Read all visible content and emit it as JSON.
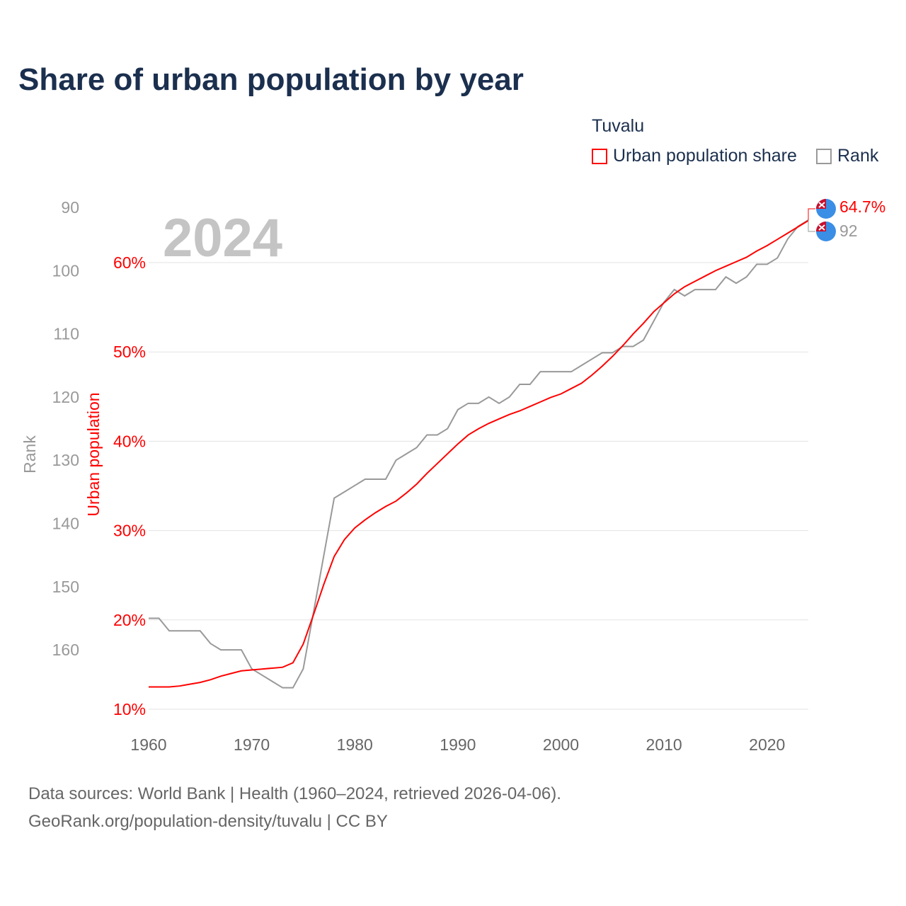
{
  "title": "Share of urban population by year",
  "legend": {
    "country": "Tuvalu",
    "items": [
      {
        "label": "Urban population share",
        "color": "#ff0000"
      },
      {
        "label": "Rank",
        "color": "#999999"
      }
    ]
  },
  "year_label": "2024",
  "footer": {
    "line1": "Data sources: World Bank | Health (1960–2024, retrieved 2026-04-06).",
    "line2": "GeoRank.org/population-density/tuvalu | CC BY"
  },
  "chart_data": {
    "type": "line",
    "title": "Share of urban population by year",
    "xlabel": "",
    "ylabel": "Urban population",
    "y2label": "Rank",
    "x_ticks": [
      1960,
      1970,
      1980,
      1990,
      2000,
      2010,
      2020
    ],
    "xlim": [
      1960,
      2024
    ],
    "y_ticks": [
      "10%",
      "20%",
      "30%",
      "40%",
      "50%",
      "60%"
    ],
    "ylim": [
      10,
      66.9
    ],
    "y2_ticks": [
      90,
      100,
      110,
      120,
      130,
      140,
      150,
      160
    ],
    "y2lim": [
      80.6,
      168
    ],
    "x": [
      1960,
      1961,
      1962,
      1963,
      1964,
      1965,
      1966,
      1967,
      1968,
      1969,
      1970,
      1971,
      1972,
      1973,
      1974,
      1975,
      1976,
      1977,
      1978,
      1979,
      1980,
      1981,
      1982,
      1983,
      1984,
      1985,
      1986,
      1987,
      1988,
      1989,
      1990,
      1991,
      1992,
      1993,
      1994,
      1995,
      1996,
      1997,
      1998,
      1999,
      2000,
      2001,
      2002,
      2003,
      2004,
      2005,
      2006,
      2007,
      2008,
      2009,
      2010,
      2011,
      2012,
      2013,
      2014,
      2015,
      2016,
      2017,
      2018,
      2019,
      2020,
      2021,
      2022,
      2023,
      2024
    ],
    "series": [
      {
        "name": "Urban population share",
        "axis": "left",
        "color": "#ff0000",
        "values": [
          12.5,
          12.5,
          12.5,
          12.6,
          12.8,
          13.0,
          13.3,
          13.7,
          14.0,
          14.3,
          14.4,
          14.5,
          14.6,
          14.7,
          15.2,
          17.3,
          20.6,
          24.0,
          27.1,
          29.0,
          30.3,
          31.2,
          32.0,
          32.7,
          33.3,
          34.2,
          35.2,
          36.4,
          37.5,
          38.6,
          39.7,
          40.7,
          41.4,
          42.0,
          42.5,
          43.0,
          43.4,
          43.9,
          44.4,
          44.9,
          45.3,
          45.9,
          46.5,
          47.4,
          48.4,
          49.5,
          50.7,
          52.0,
          53.2,
          54.5,
          55.5,
          56.5,
          57.3,
          57.9,
          58.5,
          59.1,
          59.6,
          60.1,
          60.6,
          61.3,
          61.9,
          62.6,
          63.3,
          64.0,
          64.7
        ],
        "end_label": "64.7%"
      },
      {
        "name": "Rank",
        "axis": "right",
        "color": "#999999",
        "values": [
          155,
          155,
          157,
          157,
          157,
          157,
          159,
          160,
          160,
          160,
          163,
          164,
          165,
          166,
          166,
          163,
          154,
          145,
          136,
          135,
          134,
          133,
          133,
          133,
          130,
          129,
          128,
          126,
          126,
          125,
          122,
          121,
          121,
          120,
          121,
          120,
          118,
          118,
          116,
          116,
          116,
          116,
          115,
          114,
          113,
          113,
          112,
          112,
          111,
          108,
          105,
          103,
          104,
          103,
          103,
          103,
          101,
          102,
          101,
          99,
          99,
          98,
          95,
          93,
          92
        ],
        "end_label": "92"
      }
    ],
    "grid": true,
    "legend_position": "top-right"
  }
}
